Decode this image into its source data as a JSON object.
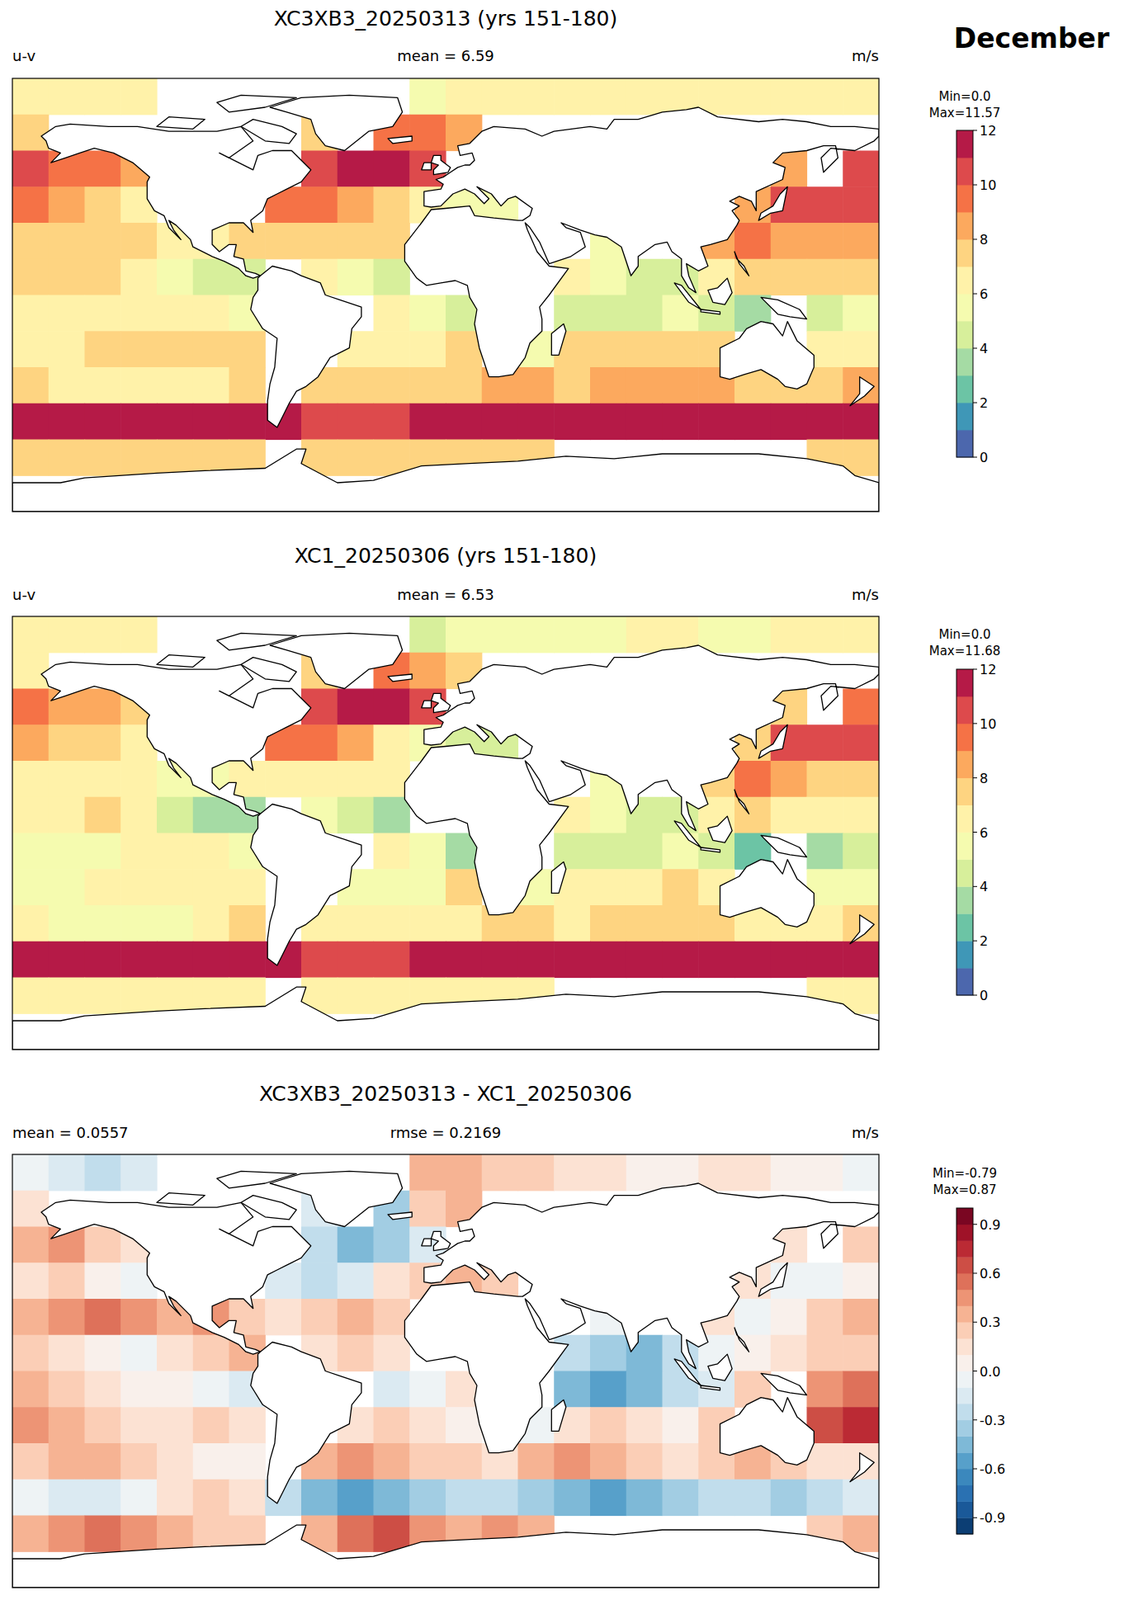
{
  "suptitle": "December",
  "chart_data": [
    {
      "type": "heatmap",
      "title": "XC3XB3_20250313 (yrs 151-180)",
      "left_label": "u-v",
      "center_label": "mean = 6.59",
      "right_label": "m/s",
      "x": [
        -172.5,
        -157.5,
        -142.5,
        -127.5,
        -112.5,
        -97.5,
        -82.5,
        -67.5,
        -52.5,
        -37.5,
        -22.5,
        -7.5,
        7.5,
        22.5,
        37.5,
        52.5,
        67.5,
        82.5,
        97.5,
        112.5,
        127.5,
        142.5,
        157.5,
        172.5
      ],
      "y": [
        82.5,
        67.5,
        52.5,
        37.5,
        22.5,
        7.5,
        -7.5,
        -22.5,
        -37.5,
        -52.5,
        -67.5,
        -82.5
      ],
      "xlim": [
        -180,
        180
      ],
      "ylim": [
        -90,
        90
      ],
      "tick_labels": false,
      "cells": [
        [
          6,
          6,
          6,
          6,
          null,
          null,
          null,
          null,
          null,
          null,
          null,
          5,
          6,
          6,
          6,
          6,
          6,
          6,
          6,
          6,
          6,
          6,
          6,
          6
        ],
        [
          7,
          null,
          null,
          null,
          null,
          null,
          null,
          null,
          7,
          null,
          9,
          9,
          8,
          null,
          null,
          null,
          null,
          null,
          null,
          null,
          null,
          null,
          null,
          null
        ],
        [
          10,
          9,
          9,
          8,
          null,
          null,
          null,
          null,
          10,
          11,
          11,
          10,
          null,
          null,
          null,
          null,
          null,
          null,
          null,
          null,
          null,
          8,
          null,
          10
        ],
        [
          9,
          8,
          7,
          6,
          null,
          null,
          null,
          9,
          9,
          8,
          7,
          6,
          5,
          5,
          null,
          null,
          null,
          null,
          null,
          null,
          8,
          10,
          10,
          10
        ],
        [
          7,
          7,
          7,
          7,
          6,
          6,
          7,
          7,
          7,
          7,
          7,
          null,
          null,
          null,
          null,
          null,
          5,
          null,
          null,
          8,
          9,
          8,
          8,
          8
        ],
        [
          7,
          7,
          7,
          6,
          5,
          4,
          4,
          null,
          6,
          5,
          4,
          null,
          null,
          null,
          null,
          6,
          5,
          4,
          4,
          6,
          7,
          7,
          7,
          7
        ],
        [
          6,
          6,
          6,
          6,
          6,
          6,
          5,
          null,
          null,
          null,
          6,
          5,
          4,
          null,
          null,
          4,
          4,
          4,
          5,
          4,
          3,
          null,
          4,
          5
        ],
        [
          6,
          6,
          7,
          7,
          7,
          7,
          7,
          null,
          null,
          6,
          6,
          6,
          7,
          null,
          5,
          7,
          7,
          7,
          7,
          7,
          null,
          null,
          6,
          6
        ],
        [
          7,
          6,
          6,
          6,
          6,
          6,
          7,
          null,
          7,
          7,
          7,
          7,
          7,
          8,
          8,
          7,
          8,
          8,
          8,
          8,
          7,
          7,
          7,
          8
        ],
        [
          11,
          11,
          11,
          11,
          11.5,
          11.5,
          11.5,
          11,
          10,
          10,
          10,
          11,
          11,
          11,
          11,
          11,
          11,
          11,
          11,
          11,
          11,
          11,
          11,
          11
        ],
        [
          7,
          7,
          7,
          7,
          7,
          7,
          7,
          null,
          7,
          7,
          7,
          7,
          7,
          7,
          7,
          null,
          null,
          null,
          null,
          null,
          null,
          null,
          7,
          7
        ],
        [
          null,
          null,
          null,
          null,
          null,
          null,
          null,
          null,
          null,
          null,
          null,
          null,
          null,
          null,
          null,
          null,
          null,
          null,
          null,
          null,
          null,
          null,
          null,
          null
        ]
      ],
      "colorbar": {
        "header": [
          "Min=0.0",
          "Max=11.57"
        ],
        "range": [
          0,
          12
        ],
        "ticks": [
          0,
          2,
          4,
          6,
          8,
          10,
          12
        ],
        "levels": [
          0,
          1,
          2,
          3,
          4,
          5,
          6,
          7,
          8,
          9,
          10,
          11,
          12
        ]
      }
    },
    {
      "type": "heatmap",
      "title": "XC1_20250306 (yrs 151-180)",
      "left_label": "u-v",
      "center_label": "mean = 6.53",
      "right_label": "m/s",
      "x": [
        -172.5,
        -157.5,
        -142.5,
        -127.5,
        -112.5,
        -97.5,
        -82.5,
        -67.5,
        -52.5,
        -37.5,
        -22.5,
        -7.5,
        7.5,
        22.5,
        37.5,
        52.5,
        67.5,
        82.5,
        97.5,
        112.5,
        127.5,
        142.5,
        157.5,
        172.5
      ],
      "y": [
        82.5,
        67.5,
        52.5,
        37.5,
        22.5,
        7.5,
        -7.5,
        -22.5,
        -37.5,
        -52.5,
        -67.5,
        -82.5
      ],
      "xlim": [
        -180,
        180
      ],
      "ylim": [
        -90,
        90
      ],
      "tick_labels": false,
      "cells": [
        [
          6.1,
          6.2,
          6.3,
          6.2,
          null,
          null,
          null,
          null,
          null,
          null,
          null,
          4.7,
          5.7,
          5.8,
          5.8,
          5.9,
          5.9,
          6,
          6,
          5.9,
          5.9,
          6,
          6,
          6.1
        ],
        [
          6.9,
          null,
          null,
          null,
          null,
          null,
          null,
          null,
          7.2,
          null,
          9.4,
          8.8,
          7.7,
          null,
          null,
          null,
          null,
          null,
          null,
          null,
          null,
          null,
          null,
          null
        ],
        [
          9.7,
          8.6,
          8.8,
          7.9,
          null,
          null,
          null,
          null,
          10.3,
          11.5,
          11.4,
          10.2,
          null,
          null,
          null,
          null,
          null,
          null,
          null,
          null,
          null,
          7.9,
          null,
          9.8
        ],
        [
          8.9,
          7.8,
          7,
          6.1,
          null,
          null,
          null,
          9.2,
          9.3,
          8.2,
          6.9,
          5.8,
          4.7,
          4.8,
          null,
          null,
          null,
          null,
          null,
          null,
          7.9,
          10.1,
          10.1,
          10
        ],
        [
          6.7,
          6.6,
          6.5,
          6.6,
          5.7,
          5.6,
          6.8,
          6.9,
          6.8,
          6.7,
          6.8,
          null,
          null,
          null,
          null,
          null,
          5.1,
          null,
          null,
          7.9,
          9.1,
          8,
          7.8,
          7.7
        ],
        [
          6.8,
          6.9,
          7,
          6.1,
          4.9,
          3.8,
          3.7,
          null,
          5.9,
          4.8,
          3.9,
          null,
          null,
          null,
          null,
          6.3,
          5.4,
          4.5,
          4.3,
          6.1,
          7,
          6.9,
          6.8,
          6.8
        ],
        [
          5.7,
          5.8,
          5.9,
          6,
          6,
          6.1,
          5.2,
          null,
          null,
          null,
          6.2,
          5.1,
          3.9,
          null,
          null,
          4.5,
          4.6,
          4.5,
          5.3,
          4.2,
          2.8,
          null,
          3.6,
          4.5
        ],
        [
          5.6,
          5.7,
          6.8,
          6.9,
          6.9,
          6.8,
          6.9,
          null,
          null,
          5.9,
          5.8,
          5.9,
          7,
          null,
          5.1,
          6.9,
          6.8,
          6.9,
          7,
          6.8,
          null,
          null,
          5.4,
          5.3
        ],
        [
          6.8,
          5.7,
          5.7,
          5.8,
          5.9,
          6,
          7,
          null,
          6.7,
          6.6,
          6.7,
          6.8,
          6.8,
          7.9,
          7.7,
          6.6,
          7.7,
          7.8,
          7.9,
          7.8,
          6.7,
          6.8,
          6.9,
          7.9
        ],
        [
          11.1,
          11.2,
          11.2,
          11.1,
          11.4,
          11.3,
          11.4,
          11.3,
          10.5,
          10.6,
          10.5,
          11.4,
          11.3,
          11.3,
          11.4,
          11.5,
          11.6,
          11.5,
          11.4,
          11.3,
          11.3,
          11.4,
          11.3,
          11.2
        ],
        [
          6.7,
          6.6,
          6.5,
          6.6,
          6.7,
          6.8,
          6.8,
          null,
          6.7,
          6.5,
          6.4,
          6.6,
          6.7,
          6.6,
          6.7,
          null,
          null,
          null,
          null,
          null,
          null,
          null,
          6.8,
          6.7
        ],
        [
          null,
          null,
          null,
          null,
          null,
          null,
          null,
          null,
          null,
          null,
          null,
          null,
          null,
          null,
          null,
          null,
          null,
          null,
          null,
          null,
          null,
          null,
          null,
          null
        ]
      ],
      "colorbar": {
        "header": [
          "Min=0.0",
          "Max=11.68"
        ],
        "range": [
          0,
          12
        ],
        "ticks": [
          0,
          2,
          4,
          6,
          8,
          10,
          12
        ],
        "levels": [
          0,
          1,
          2,
          3,
          4,
          5,
          6,
          7,
          8,
          9,
          10,
          11,
          12
        ]
      }
    },
    {
      "type": "heatmap",
      "title": "XC3XB3_20250313 - XC1_20250306",
      "left_label": "mean = 0.0557",
      "center_label": "rmse = 0.2169",
      "right_label": "m/s",
      "x": [
        -172.5,
        -157.5,
        -142.5,
        -127.5,
        -112.5,
        -97.5,
        -82.5,
        -67.5,
        -52.5,
        -37.5,
        -22.5,
        -7.5,
        7.5,
        22.5,
        37.5,
        52.5,
        67.5,
        82.5,
        97.5,
        112.5,
        127.5,
        142.5,
        157.5,
        172.5
      ],
      "y": [
        82.5,
        67.5,
        52.5,
        37.5,
        22.5,
        7.5,
        -7.5,
        -22.5,
        -37.5,
        -52.5,
        -67.5,
        -82.5
      ],
      "xlim": [
        -180,
        180
      ],
      "ylim": [
        -90,
        90
      ],
      "tick_labels": false,
      "cells": [
        [
          -0.1,
          -0.2,
          -0.3,
          -0.2,
          null,
          null,
          null,
          null,
          null,
          null,
          null,
          0.3,
          0.3,
          0.2,
          0.2,
          0.1,
          0.1,
          0,
          0,
          0.1,
          0.1,
          0,
          0,
          -0.1
        ],
        [
          0.1,
          null,
          null,
          null,
          null,
          null,
          null,
          null,
          -0.2,
          null,
          -0.4,
          0.2,
          0.3,
          null,
          null,
          null,
          null,
          null,
          null,
          null,
          null,
          null,
          null,
          null
        ],
        [
          0.3,
          0.4,
          0.2,
          0.1,
          null,
          null,
          null,
          null,
          -0.3,
          -0.5,
          -0.4,
          -0.2,
          null,
          null,
          null,
          null,
          null,
          null,
          null,
          null,
          null,
          0.1,
          null,
          0.2
        ],
        [
          0.1,
          0.2,
          0,
          -0.1,
          null,
          null,
          null,
          -0.2,
          -0.3,
          -0.2,
          0.1,
          0.2,
          0.3,
          0.2,
          null,
          null,
          null,
          null,
          null,
          null,
          0.1,
          -0.1,
          -0.1,
          0
        ],
        [
          0.3,
          0.4,
          0.5,
          0.4,
          0.3,
          0.4,
          0.2,
          0.1,
          0.2,
          0.3,
          0.2,
          null,
          null,
          null,
          null,
          null,
          -0.1,
          null,
          null,
          0.1,
          -0.1,
          0,
          0.2,
          0.3
        ],
        [
          0.2,
          0.1,
          0,
          -0.1,
          0.1,
          0.2,
          0.3,
          null,
          0.1,
          0.2,
          0.1,
          null,
          null,
          null,
          null,
          -0.3,
          -0.4,
          -0.5,
          -0.3,
          -0.1,
          0,
          0.1,
          0.2,
          0.2
        ],
        [
          0.3,
          0.2,
          0.1,
          0,
          0,
          -0.1,
          -0.2,
          null,
          null,
          null,
          -0.2,
          -0.1,
          0.1,
          null,
          null,
          -0.5,
          -0.6,
          -0.5,
          -0.3,
          -0.2,
          0.2,
          null,
          0.4,
          0.5
        ],
        [
          0.4,
          0.3,
          0.2,
          0.1,
          0.1,
          0.2,
          0.1,
          null,
          null,
          0.1,
          0.2,
          0.1,
          0,
          null,
          -0.1,
          0.1,
          0.2,
          0.1,
          0,
          0.2,
          null,
          null,
          0.6,
          0.7
        ],
        [
          0.2,
          0.3,
          0.3,
          0.2,
          0.1,
          0,
          0,
          null,
          0.3,
          0.4,
          0.3,
          0.2,
          0.2,
          0.1,
          0.3,
          0.4,
          0.3,
          0.2,
          0.1,
          0.2,
          0.3,
          0.2,
          0.1,
          0.1
        ],
        [
          -0.1,
          -0.2,
          -0.2,
          -0.1,
          0.1,
          0.2,
          0.1,
          -0.3,
          -0.5,
          -0.6,
          -0.5,
          -0.4,
          -0.3,
          -0.3,
          -0.4,
          -0.5,
          -0.6,
          -0.5,
          -0.4,
          -0.3,
          -0.3,
          -0.4,
          -0.3,
          -0.2
        ],
        [
          0.3,
          0.4,
          0.5,
          0.4,
          0.3,
          0.2,
          0.2,
          null,
          0.3,
          0.5,
          0.6,
          0.4,
          0.3,
          0.4,
          0.3,
          null,
          null,
          null,
          null,
          null,
          null,
          null,
          0.2,
          0.3
        ],
        [
          null,
          null,
          null,
          null,
          null,
          null,
          null,
          null,
          null,
          null,
          null,
          null,
          null,
          null,
          null,
          null,
          null,
          null,
          null,
          null,
          null,
          null,
          null,
          null
        ]
      ],
      "colorbar": {
        "header": [
          "Min=-0.79",
          "Max=0.87"
        ],
        "range": [
          -1,
          1
        ],
        "ticks": [
          -0.9,
          -0.6,
          -0.3,
          {
            "value": 0,
            "label": "0.0"
          },
          0.3,
          0.6,
          0.9
        ],
        "levels": [
          -1,
          -0.9,
          -0.8,
          -0.7,
          -0.6,
          -0.5,
          -0.4,
          -0.3,
          -0.2,
          -0.1,
          0,
          0.1,
          0.2,
          0.3,
          0.4,
          0.5,
          0.6,
          0.7,
          0.8,
          0.9,
          1
        ]
      }
    }
  ]
}
